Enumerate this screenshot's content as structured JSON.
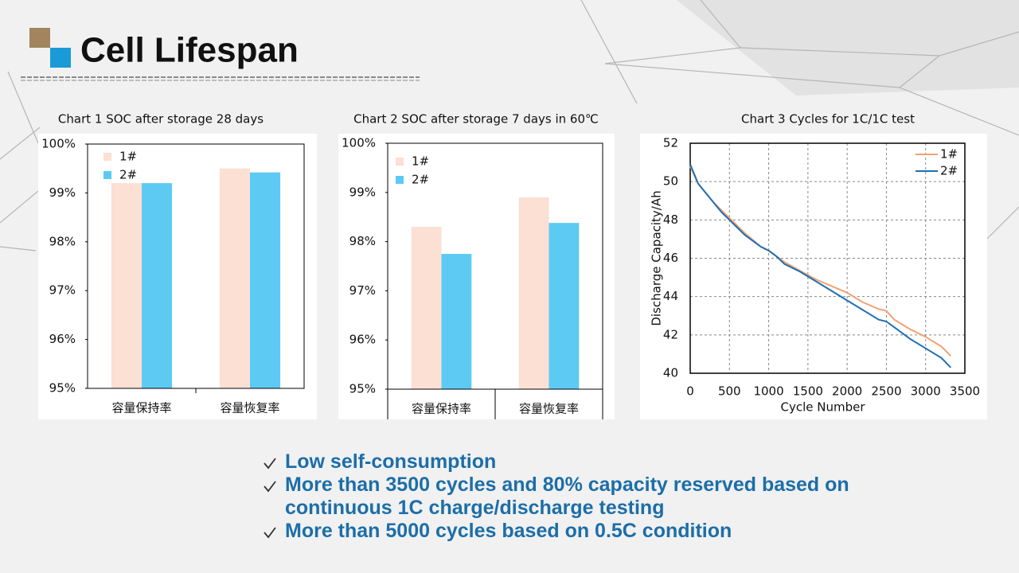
{
  "title": "Cell Lifespan",
  "chart_data": [
    {
      "type": "bar",
      "title": "Chart 1 SOC after storage 28 days",
      "categories": [
        "容量保持率",
        "容量恢复率"
      ],
      "series": [
        {
          "name": "1#",
          "color": "#fbe0d3",
          "values": [
            99.2,
            99.5
          ]
        },
        {
          "name": "2#",
          "color": "#5ccaf3",
          "values": [
            99.2,
            99.42
          ]
        }
      ],
      "ylim": [
        95,
        100
      ],
      "yticks": [
        {
          "value": 95,
          "label": "95%"
        },
        {
          "value": 96,
          "label": "96%"
        },
        {
          "value": 97,
          "label": "97%"
        },
        {
          "value": 98,
          "label": "98%"
        },
        {
          "value": 99,
          "label": "99%"
        },
        {
          "value": 100,
          "label": "100%"
        }
      ],
      "legend": "upper left"
    },
    {
      "type": "bar",
      "title": "Chart 2 SOC after storage 7 days in 60℃",
      "categories": [
        "容量保持率",
        "容量恢复率"
      ],
      "series": [
        {
          "name": "1#",
          "color": "#fbe0d3",
          "values": [
            98.3,
            98.9
          ]
        },
        {
          "name": "2#",
          "color": "#5ccaf3",
          "values": [
            97.75,
            98.38
          ]
        }
      ],
      "ylim": [
        95,
        100
      ],
      "yticks": [
        {
          "value": 95,
          "label": "95%"
        },
        {
          "value": 96,
          "label": "96%"
        },
        {
          "value": 97,
          "label": "97%"
        },
        {
          "value": 98,
          "label": "98%"
        },
        {
          "value": 99,
          "label": "99%"
        },
        {
          "value": 100,
          "label": "100%"
        }
      ],
      "legend": "upper left"
    },
    {
      "type": "line",
      "title": "Chart 3 Cycles for 1C/1C test",
      "x_label": "Cycle Number",
      "y_label": "Discharge Capacity/Ah",
      "x": [
        0,
        100,
        200,
        300,
        400,
        500,
        600,
        700,
        800,
        900,
        1000,
        1100,
        1200,
        1400,
        1600,
        1800,
        2000,
        2200,
        2400,
        2500,
        2600,
        2800,
        3000,
        3200,
        3320
      ],
      "series": [
        {
          "name": "1#",
          "color": "#f0a272",
          "values": [
            50.8,
            49.9,
            49.4,
            48.9,
            48.5,
            48.1,
            47.7,
            47.3,
            46.95,
            46.6,
            46.4,
            46.1,
            45.8,
            45.35,
            44.9,
            44.55,
            44.2,
            43.7,
            43.35,
            43.25,
            42.8,
            42.3,
            41.9,
            41.4,
            40.9
          ]
        },
        {
          "name": "2#",
          "color": "#1f6fb2",
          "values": [
            50.9,
            49.9,
            49.4,
            48.9,
            48.4,
            48.0,
            47.6,
            47.2,
            46.9,
            46.6,
            46.4,
            46.1,
            45.7,
            45.3,
            44.8,
            44.3,
            43.8,
            43.3,
            42.8,
            42.7,
            42.4,
            41.8,
            41.3,
            40.8,
            40.3
          ]
        }
      ],
      "xlim": [
        0,
        3500
      ],
      "xticks": [
        0,
        500,
        1000,
        1500,
        2000,
        2500,
        3000,
        3500
      ],
      "ylim": [
        40,
        52
      ],
      "yticks": [
        40,
        42,
        44,
        46,
        48,
        50,
        52
      ],
      "grid": true,
      "legend": "upper right"
    }
  ],
  "bullets": [
    "Low self-consumption",
    "More than 3500 cycles and 80% capacity reserved based on continuous 1C  charge/discharge testing",
    "More than 5000 cycles based on 0.5C condition"
  ]
}
